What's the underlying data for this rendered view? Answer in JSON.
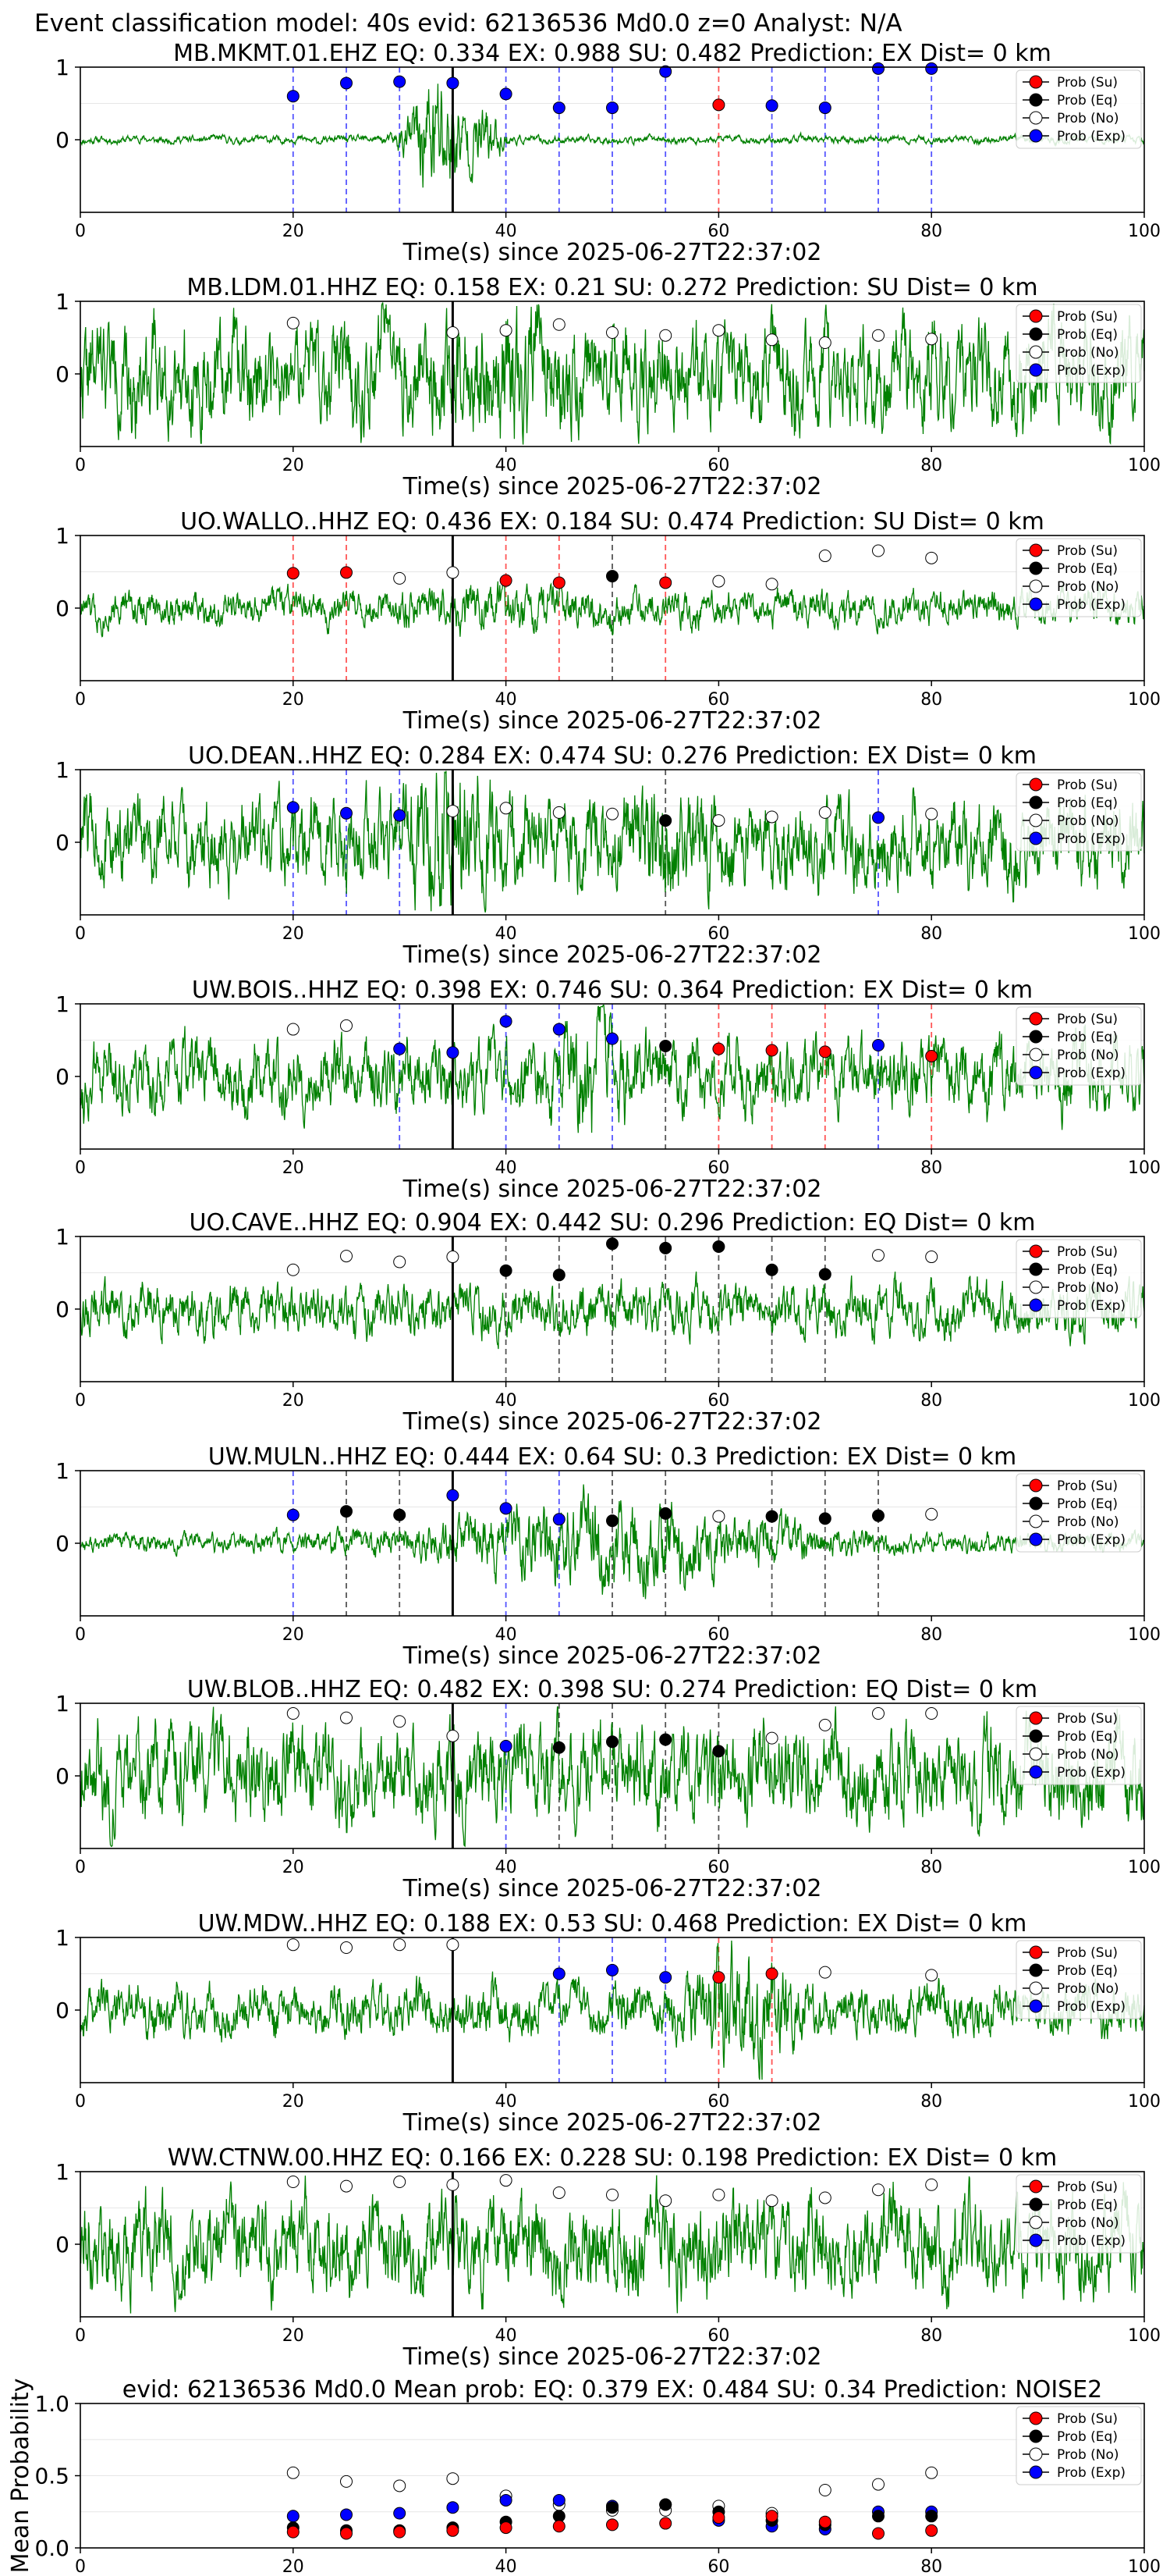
{
  "figure": {
    "suptitle": "Event classification model: 40s evid: 62136536 Md0.0 z=0 Analyst: N/A"
  },
  "legend": {
    "su": "Prob (Su)",
    "eq": "Prob (Eq)",
    "no": "Prob (No)",
    "exp": "Prob (Exp)"
  },
  "colors": {
    "waveform": "#008000",
    "su": "#ff0000",
    "eq": "#000000",
    "no": "#ffffff",
    "exp": "#0000ff",
    "su_line": "#ff5555",
    "exp_line": "#5555ff",
    "eq_line": "#555555"
  },
  "chart_data": [
    {
      "type": "line",
      "title": "MB.MKMT.01.EHZ   EQ: 0.334  EX: 0.988  SU: 0.482   Prediction: EX    Dist= 0 km",
      "xlabel": "Time(s) since 2025-06-27T22:37:02",
      "xlim": [
        0,
        100
      ],
      "xticks": [
        0,
        20,
        40,
        60,
        80,
        100
      ],
      "ylim": [
        -1,
        1
      ],
      "yticks": [
        0,
        1
      ],
      "pick_time": 35,
      "waveform": {
        "noise": 0.05,
        "bursts": [
          {
            "t": 33.5,
            "w": 2.5,
            "a": 0.9
          },
          {
            "t": 38,
            "w": 1.5,
            "a": 0.4
          }
        ],
        "seed": 11
      },
      "windows": [
        {
          "t": 20,
          "cls": "exp",
          "p": 0.6
        },
        {
          "t": 25,
          "cls": "exp",
          "p": 0.78
        },
        {
          "t": 30,
          "cls": "exp",
          "p": 0.8
        },
        {
          "t": 35,
          "cls": "exp",
          "p": 0.78
        },
        {
          "t": 40,
          "cls": "exp",
          "p": 0.63
        },
        {
          "t": 45,
          "cls": "exp",
          "p": 0.44
        },
        {
          "t": 50,
          "cls": "exp",
          "p": 0.44
        },
        {
          "t": 55,
          "cls": "exp",
          "p": 0.94
        },
        {
          "t": 60,
          "cls": "su",
          "p": 0.48
        },
        {
          "t": 65,
          "cls": "exp",
          "p": 0.47
        },
        {
          "t": 70,
          "cls": "exp",
          "p": 0.44
        },
        {
          "t": 75,
          "cls": "exp",
          "p": 0.98
        },
        {
          "t": 80,
          "cls": "exp",
          "p": 0.98
        }
      ]
    },
    {
      "type": "line",
      "title": "MB.LDM.01.HHZ   EQ: 0.158  EX: 0.21  SU: 0.272   Prediction: SU    Dist= 0 km",
      "xlabel": "Time(s) since 2025-06-27T22:37:02",
      "xlim": [
        0,
        100
      ],
      "xticks": [
        0,
        20,
        40,
        60,
        80,
        100
      ],
      "ylim": [
        -1,
        1
      ],
      "yticks": [
        0,
        1
      ],
      "pick_time": 35,
      "waveform": {
        "noise": 0.65,
        "bursts": [
          {
            "t": 40,
            "w": 5,
            "a": 0.3
          }
        ],
        "seed": 22
      },
      "windows": [
        {
          "t": 20,
          "cls": "no",
          "p": 0.7
        },
        {
          "t": 35,
          "cls": "no",
          "p": 0.57
        },
        {
          "t": 40,
          "cls": "no",
          "p": 0.6
        },
        {
          "t": 45,
          "cls": "no",
          "p": 0.68
        },
        {
          "t": 50,
          "cls": "no",
          "p": 0.57
        },
        {
          "t": 55,
          "cls": "no",
          "p": 0.53
        },
        {
          "t": 60,
          "cls": "no",
          "p": 0.6
        },
        {
          "t": 65,
          "cls": "no",
          "p": 0.47
        },
        {
          "t": 70,
          "cls": "no",
          "p": 0.43
        },
        {
          "t": 75,
          "cls": "no",
          "p": 0.53
        },
        {
          "t": 80,
          "cls": "no",
          "p": 0.48
        }
      ]
    },
    {
      "type": "line",
      "title": "UO.WALLO..HHZ   EQ: 0.436  EX: 0.184  SU: 0.474   Prediction: SU    Dist= 0 km",
      "xlabel": "Time(s) since 2025-06-27T22:37:02",
      "xlim": [
        0,
        100
      ],
      "xticks": [
        0,
        20,
        40,
        60,
        80,
        100
      ],
      "ylim": [
        -1,
        1
      ],
      "yticks": [
        0,
        1
      ],
      "pick_time": 35,
      "waveform": {
        "noise": 0.22,
        "bursts": [
          {
            "t": 38,
            "w": 8,
            "a": 0.1
          }
        ],
        "seed": 33
      },
      "windows": [
        {
          "t": 20,
          "cls": "su",
          "p": 0.48
        },
        {
          "t": 25,
          "cls": "su",
          "p": 0.49
        },
        {
          "t": 30,
          "cls": "no",
          "p": 0.41
        },
        {
          "t": 35,
          "cls": "no",
          "p": 0.49
        },
        {
          "t": 40,
          "cls": "su",
          "p": 0.38
        },
        {
          "t": 45,
          "cls": "su",
          "p": 0.35
        },
        {
          "t": 50,
          "cls": "eq",
          "p": 0.44
        },
        {
          "t": 55,
          "cls": "su",
          "p": 0.35
        },
        {
          "t": 60,
          "cls": "no",
          "p": 0.37
        },
        {
          "t": 65,
          "cls": "no",
          "p": 0.33
        },
        {
          "t": 70,
          "cls": "no",
          "p": 0.72
        },
        {
          "t": 75,
          "cls": "no",
          "p": 0.79
        },
        {
          "t": 80,
          "cls": "no",
          "p": 0.69
        }
      ]
    },
    {
      "type": "line",
      "title": "UO.DEAN..HHZ   EQ: 0.284  EX: 0.474  SU: 0.276   Prediction: EX    Dist= 0 km",
      "xlabel": "Time(s) since 2025-06-27T22:37:02",
      "xlim": [
        0,
        100
      ],
      "xticks": [
        0,
        20,
        40,
        60,
        80,
        100
      ],
      "ylim": [
        -1,
        1
      ],
      "yticks": [
        0,
        1
      ],
      "pick_time": 35,
      "waveform": {
        "noise": 0.55,
        "bursts": [
          {
            "t": 35,
            "w": 4,
            "a": 0.5
          },
          {
            "t": 55,
            "w": 3,
            "a": 0.3
          }
        ],
        "seed": 44
      },
      "windows": [
        {
          "t": 20,
          "cls": "exp",
          "p": 0.48
        },
        {
          "t": 25,
          "cls": "exp",
          "p": 0.4
        },
        {
          "t": 30,
          "cls": "exp",
          "p": 0.37
        },
        {
          "t": 35,
          "cls": "no",
          "p": 0.43
        },
        {
          "t": 40,
          "cls": "no",
          "p": 0.47
        },
        {
          "t": 45,
          "cls": "no",
          "p": 0.41
        },
        {
          "t": 50,
          "cls": "no",
          "p": 0.39
        },
        {
          "t": 55,
          "cls": "eq",
          "p": 0.3
        },
        {
          "t": 60,
          "cls": "no",
          "p": 0.3
        },
        {
          "t": 65,
          "cls": "no",
          "p": 0.35
        },
        {
          "t": 70,
          "cls": "no",
          "p": 0.41
        },
        {
          "t": 75,
          "cls": "exp",
          "p": 0.34
        },
        {
          "t": 80,
          "cls": "no",
          "p": 0.39
        }
      ]
    },
    {
      "type": "line",
      "title": "UW.BOIS..HHZ   EQ: 0.398  EX: 0.746  SU: 0.364   Prediction: EX    Dist= 0 km",
      "xlabel": "Time(s) since 2025-06-27T22:37:02",
      "xlim": [
        0,
        100
      ],
      "xticks": [
        0,
        20,
        40,
        60,
        80,
        100
      ],
      "ylim": [
        -1,
        1
      ],
      "yticks": [
        0,
        1
      ],
      "pick_time": 35,
      "waveform": {
        "noise": 0.45,
        "bursts": [
          {
            "t": 48,
            "w": 3,
            "a": 0.4
          }
        ],
        "seed": 55
      },
      "windows": [
        {
          "t": 20,
          "cls": "no",
          "p": 0.65
        },
        {
          "t": 25,
          "cls": "no",
          "p": 0.7
        },
        {
          "t": 30,
          "cls": "exp",
          "p": 0.38
        },
        {
          "t": 35,
          "cls": "exp",
          "p": 0.33
        },
        {
          "t": 40,
          "cls": "exp",
          "p": 0.76
        },
        {
          "t": 45,
          "cls": "exp",
          "p": 0.65
        },
        {
          "t": 50,
          "cls": "exp",
          "p": 0.52
        },
        {
          "t": 55,
          "cls": "eq",
          "p": 0.42
        },
        {
          "t": 60,
          "cls": "su",
          "p": 0.38
        },
        {
          "t": 65,
          "cls": "su",
          "p": 0.36
        },
        {
          "t": 70,
          "cls": "su",
          "p": 0.34
        },
        {
          "t": 75,
          "cls": "exp",
          "p": 0.43
        },
        {
          "t": 80,
          "cls": "su",
          "p": 0.28
        }
      ]
    },
    {
      "type": "line",
      "title": "UO.CAVE..HHZ   EQ: 0.904  EX: 0.442  SU: 0.296   Prediction: EQ    Dist= 0 km",
      "xlabel": "Time(s) since 2025-06-27T22:37:02",
      "xlim": [
        0,
        100
      ],
      "xticks": [
        0,
        20,
        40,
        60,
        80,
        100
      ],
      "ylim": [
        -1,
        1
      ],
      "yticks": [
        0,
        1
      ],
      "pick_time": 35,
      "waveform": {
        "noise": 0.32,
        "bursts": [],
        "seed": 66
      },
      "windows": [
        {
          "t": 20,
          "cls": "no",
          "p": 0.54
        },
        {
          "t": 25,
          "cls": "no",
          "p": 0.73
        },
        {
          "t": 30,
          "cls": "no",
          "p": 0.65
        },
        {
          "t": 35,
          "cls": "no",
          "p": 0.72
        },
        {
          "t": 40,
          "cls": "eq",
          "p": 0.53
        },
        {
          "t": 45,
          "cls": "eq",
          "p": 0.47
        },
        {
          "t": 50,
          "cls": "eq",
          "p": 0.9
        },
        {
          "t": 55,
          "cls": "eq",
          "p": 0.84
        },
        {
          "t": 60,
          "cls": "eq",
          "p": 0.86
        },
        {
          "t": 65,
          "cls": "eq",
          "p": 0.54
        },
        {
          "t": 70,
          "cls": "eq",
          "p": 0.48
        },
        {
          "t": 75,
          "cls": "no",
          "p": 0.74
        },
        {
          "t": 80,
          "cls": "no",
          "p": 0.72
        }
      ]
    },
    {
      "type": "line",
      "title": "UW.MULN..HHZ   EQ: 0.444  EX: 0.64  SU: 0.3   Prediction: EX    Dist= 0 km",
      "xlabel": "Time(s) since 2025-06-27T22:37:02",
      "xlim": [
        0,
        100
      ],
      "xticks": [
        0,
        20,
        40,
        60,
        80,
        100
      ],
      "ylim": [
        -1,
        1
      ],
      "yticks": [
        0,
        1
      ],
      "pick_time": 35,
      "waveform": {
        "noise": 0.12,
        "bursts": [
          {
            "t": 50,
            "w": 16,
            "a": 0.45
          }
        ],
        "seed": 77
      },
      "windows": [
        {
          "t": 20,
          "cls": "exp",
          "p": 0.39
        },
        {
          "t": 25,
          "cls": "eq",
          "p": 0.44
        },
        {
          "t": 30,
          "cls": "eq",
          "p": 0.39
        },
        {
          "t": 35,
          "cls": "exp",
          "p": 0.66
        },
        {
          "t": 40,
          "cls": "exp",
          "p": 0.48
        },
        {
          "t": 45,
          "cls": "exp",
          "p": 0.33
        },
        {
          "t": 50,
          "cls": "eq",
          "p": 0.31
        },
        {
          "t": 55,
          "cls": "eq",
          "p": 0.41
        },
        {
          "t": 60,
          "cls": "no",
          "p": 0.37
        },
        {
          "t": 65,
          "cls": "eq",
          "p": 0.37
        },
        {
          "t": 70,
          "cls": "eq",
          "p": 0.34
        },
        {
          "t": 75,
          "cls": "eq",
          "p": 0.38
        },
        {
          "t": 80,
          "cls": "no",
          "p": 0.4
        }
      ]
    },
    {
      "type": "line",
      "title": "UW.BLOB..HHZ   EQ: 0.482  EX: 0.398  SU: 0.274   Prediction: EQ    Dist= 0 km",
      "xlabel": "Time(s) since 2025-06-27T22:37:02",
      "xlim": [
        0,
        100
      ],
      "xticks": [
        0,
        20,
        40,
        60,
        80,
        100
      ],
      "ylim": [
        -1,
        1
      ],
      "yticks": [
        0,
        1
      ],
      "pick_time": 35,
      "waveform": {
        "noise": 0.6,
        "bursts": [],
        "seed": 88
      },
      "windows": [
        {
          "t": 20,
          "cls": "no",
          "p": 0.86
        },
        {
          "t": 25,
          "cls": "no",
          "p": 0.8
        },
        {
          "t": 30,
          "cls": "no",
          "p": 0.75
        },
        {
          "t": 35,
          "cls": "no",
          "p": 0.55
        },
        {
          "t": 40,
          "cls": "exp",
          "p": 0.41
        },
        {
          "t": 45,
          "cls": "eq",
          "p": 0.39
        },
        {
          "t": 50,
          "cls": "eq",
          "p": 0.47
        },
        {
          "t": 55,
          "cls": "eq",
          "p": 0.5
        },
        {
          "t": 60,
          "cls": "eq",
          "p": 0.34
        },
        {
          "t": 65,
          "cls": "no",
          "p": 0.52
        },
        {
          "t": 70,
          "cls": "no",
          "p": 0.7
        },
        {
          "t": 75,
          "cls": "no",
          "p": 0.86
        },
        {
          "t": 80,
          "cls": "no",
          "p": 0.86
        }
      ]
    },
    {
      "type": "line",
      "title": "UW.MDW..HHZ   EQ: 0.188  EX: 0.53  SU: 0.468   Prediction: EX    Dist= 0 km",
      "xlabel": "Time(s) since 2025-06-27T22:37:02",
      "xlim": [
        0,
        100
      ],
      "xticks": [
        0,
        20,
        40,
        60,
        80,
        100
      ],
      "ylim": [
        -1,
        1
      ],
      "yticks": [
        0,
        1
      ],
      "pick_time": 35,
      "waveform": {
        "noise": 0.32,
        "bursts": [
          {
            "t": 62,
            "w": 4,
            "a": 0.6
          }
        ],
        "seed": 99
      },
      "windows": [
        {
          "t": 20,
          "cls": "no",
          "p": 0.9
        },
        {
          "t": 25,
          "cls": "no",
          "p": 0.86
        },
        {
          "t": 30,
          "cls": "no",
          "p": 0.9
        },
        {
          "t": 35,
          "cls": "no",
          "p": 0.9
        },
        {
          "t": 45,
          "cls": "exp",
          "p": 0.5
        },
        {
          "t": 50,
          "cls": "exp",
          "p": 0.55
        },
        {
          "t": 55,
          "cls": "exp",
          "p": 0.45
        },
        {
          "t": 60,
          "cls": "su",
          "p": 0.45
        },
        {
          "t": 65,
          "cls": "su",
          "p": 0.5
        },
        {
          "t": 70,
          "cls": "no",
          "p": 0.52
        },
        {
          "t": 80,
          "cls": "no",
          "p": 0.48
        }
      ]
    },
    {
      "type": "line",
      "title": "WW.CTNW.00.HHZ   EQ: 0.166  EX: 0.228  SU: 0.198   Prediction: EX    Dist= 0 km",
      "xlabel": "Time(s) since 2025-06-27T22:37:02",
      "xlim": [
        0,
        100
      ],
      "xticks": [
        0,
        20,
        40,
        60,
        80,
        100
      ],
      "ylim": [
        -1,
        1
      ],
      "yticks": [
        0,
        1
      ],
      "pick_time": 35,
      "waveform": {
        "noise": 0.6,
        "bursts": [],
        "seed": 111
      },
      "windows": [
        {
          "t": 20,
          "cls": "no",
          "p": 0.86
        },
        {
          "t": 25,
          "cls": "no",
          "p": 0.8
        },
        {
          "t": 30,
          "cls": "no",
          "p": 0.86
        },
        {
          "t": 35,
          "cls": "no",
          "p": 0.82
        },
        {
          "t": 40,
          "cls": "no",
          "p": 0.88
        },
        {
          "t": 45,
          "cls": "no",
          "p": 0.71
        },
        {
          "t": 50,
          "cls": "no",
          "p": 0.68
        },
        {
          "t": 55,
          "cls": "no",
          "p": 0.6
        },
        {
          "t": 60,
          "cls": "no",
          "p": 0.68
        },
        {
          "t": 65,
          "cls": "no",
          "p": 0.6
        },
        {
          "t": 70,
          "cls": "no",
          "p": 0.64
        },
        {
          "t": 75,
          "cls": "no",
          "p": 0.75
        },
        {
          "t": 80,
          "cls": "no",
          "p": 0.82
        }
      ]
    },
    {
      "type": "scatter",
      "title": "evid: 62136536   Md0.0   Mean prob:   EQ: 0.379  EX: 0.484  SU: 0.34   Prediction: NOISE2",
      "ylabel": "Mean Probability",
      "xlim": [
        0,
        100
      ],
      "xticks": [
        0,
        20,
        40,
        60,
        80,
        100
      ],
      "ylim": [
        0,
        1
      ],
      "yticks": [
        0.0,
        0.5,
        1.0
      ],
      "x": [
        20,
        25,
        30,
        35,
        40,
        45,
        50,
        55,
        60,
        65,
        70,
        75,
        80
      ],
      "series": [
        {
          "name": "Prob (Su)",
          "cls": "su",
          "values": [
            0.11,
            0.1,
            0.11,
            0.12,
            0.14,
            0.15,
            0.16,
            0.17,
            0.21,
            0.22,
            0.18,
            0.1,
            0.12
          ]
        },
        {
          "name": "Prob (Eq)",
          "cls": "eq",
          "values": [
            0.14,
            0.12,
            0.12,
            0.14,
            0.18,
            0.22,
            0.28,
            0.3,
            0.25,
            0.19,
            0.16,
            0.22,
            0.22
          ]
        },
        {
          "name": "Prob (No)",
          "cls": "no",
          "values": [
            0.52,
            0.46,
            0.43,
            0.48,
            0.36,
            0.3,
            0.26,
            0.26,
            0.29,
            0.24,
            0.4,
            0.44,
            0.52
          ]
        },
        {
          "name": "Prob (Exp)",
          "cls": "exp",
          "values": [
            0.22,
            0.23,
            0.24,
            0.28,
            0.33,
            0.33,
            0.29,
            0.3,
            0.19,
            0.15,
            0.13,
            0.25,
            0.25
          ]
        }
      ]
    }
  ]
}
